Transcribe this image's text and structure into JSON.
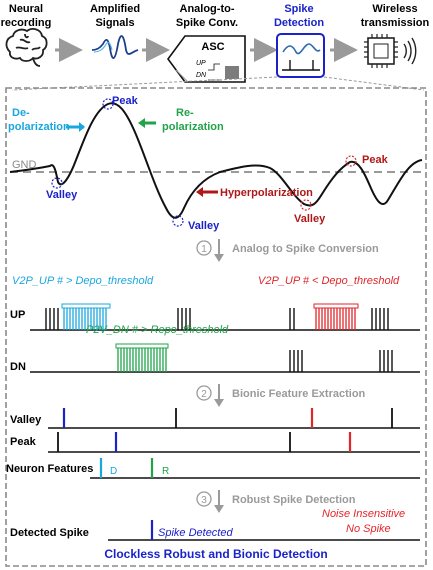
{
  "header": {
    "stages": [
      {
        "label1": "Neural",
        "label2": "recording",
        "icon": "brain-icon"
      },
      {
        "label1": "Amplified",
        "label2": "Signals",
        "icon": "waveform-icon"
      },
      {
        "label1": "Analog-to-",
        "label2": "Spike Conv.",
        "icon": "asc-block-icon"
      },
      {
        "label1": "Spike",
        "label2": "Detection",
        "icon": "spike-detection-icon"
      },
      {
        "label1": "Wireless",
        "label2": "transmission",
        "icon": "chip-wireless-icon"
      }
    ],
    "asc_title": "ASC",
    "asc_up": "UP",
    "asc_dn": "DN"
  },
  "waveform": {
    "depolarization1": "De-",
    "depolarization2": "polarization",
    "peak": "Peak",
    "repolarization1": "Re-",
    "repolarization2": "polarization",
    "gnd": "GND",
    "valley": "Valley",
    "hyperpolarization": "Hyperpolarization",
    "peak2": "Peak",
    "valley2": "Valley",
    "valley3": "Valley"
  },
  "steps": [
    {
      "num": "1",
      "label": "Analog to Spike Conversion"
    },
    {
      "num": "2",
      "label": "Bionic Feature Extraction"
    },
    {
      "num": "3",
      "label": "Robust Spike Detection"
    }
  ],
  "conversion": {
    "v2p_up_gt": "V2P_UP # > Depo_threshold",
    "v2p_up_lt": "V2P_UP # < Depo_threshold",
    "p2v_dn_gt": "P2V_DN # > Repo_threshold",
    "up": "UP",
    "dn": "DN"
  },
  "features": {
    "valley": "Valley",
    "peak": "Peak",
    "neuron_features": "Neuron Features",
    "d": "D",
    "r": "R"
  },
  "detection": {
    "detected_spike": "Detected Spike",
    "spike_detected": "Spike Detected",
    "noise_insensitive": "Noise Insensitive",
    "no_spike": "No Spike",
    "footer": "Clockless Robust and Bionic Detection"
  },
  "colors": {
    "blue": "#1a22c8",
    "cyan": "#1aa7de",
    "green": "#21a34a",
    "red": "#e0262b",
    "darkred": "#b01818",
    "gray": "#9a9a9a"
  }
}
